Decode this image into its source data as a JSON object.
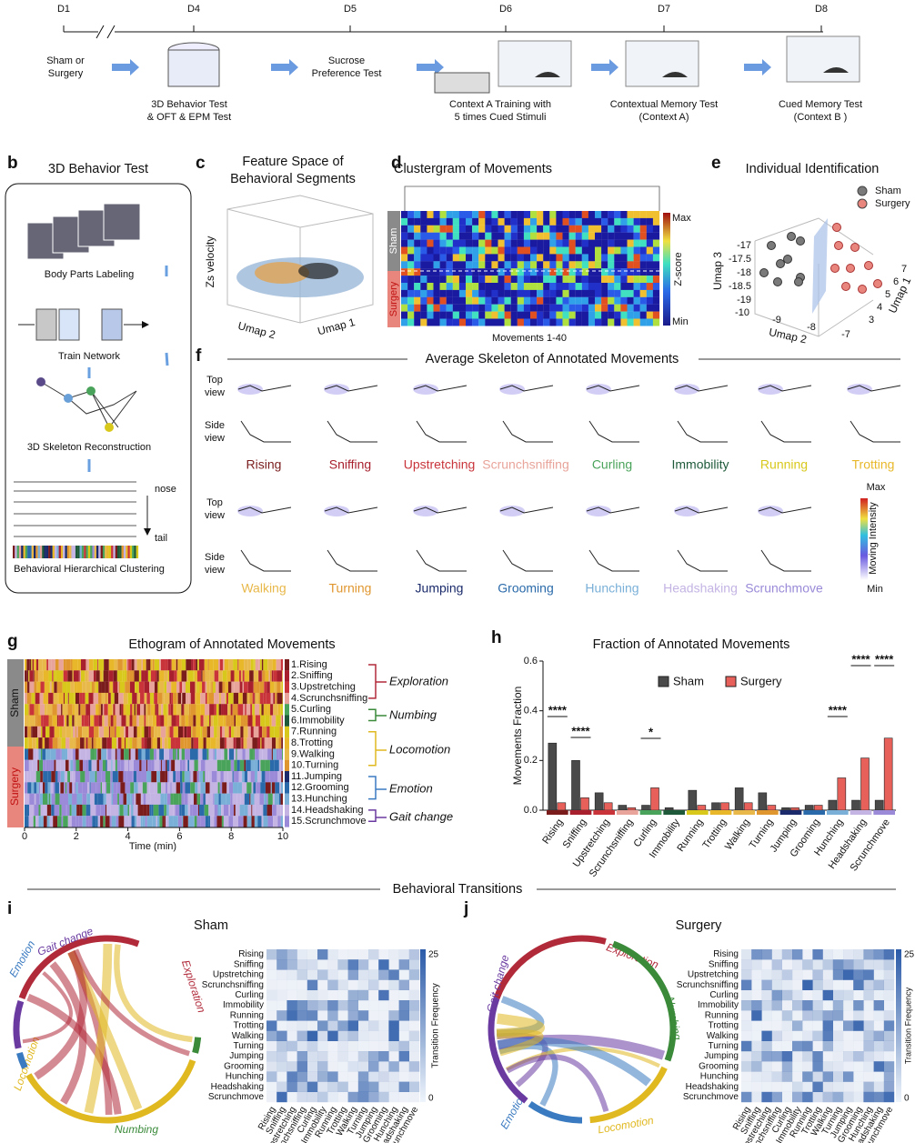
{
  "timeline": {
    "days": [
      "D1",
      "D4",
      "D5",
      "D6",
      "D7",
      "D8"
    ],
    "steps": [
      [
        "Sham or",
        "Surgery"
      ],
      [
        "3D Behavior Test",
        "& OFT & EPM Test"
      ],
      [
        "Sucrose",
        "Preference Test"
      ],
      [
        "Context A Training with",
        "5 times Cued Stimuli"
      ],
      [
        "Contextual Memory Test",
        "(Context A)"
      ],
      [
        "Cued Memory Test",
        "(Context B )"
      ]
    ]
  },
  "panel_b": {
    "letter": "b",
    "title": "3D Behavior Test",
    "steps": [
      "Body Parts Labeling",
      "Train Network",
      "3D Skeleton Reconstruction",
      "Behavioral Hierarchical Clustering"
    ],
    "nose": "nose",
    "tail": "tail"
  },
  "panel_c": {
    "letter": "c",
    "title": [
      "Feature Space of",
      "Behavioral Segments"
    ],
    "zlabel": "Zs velocity",
    "xlabel": "Umap 2",
    "ylabel": "Umap 1"
  },
  "panel_d": {
    "letter": "d",
    "title": "Clustergram of Movements",
    "groups": [
      "Sham",
      "Surgery"
    ],
    "colorbar": [
      "Max",
      "Z-score",
      "Min"
    ],
    "xlabel": "Movements 1-40"
  },
  "panel_e": {
    "letter": "e",
    "title": "Individual Identification",
    "legend": [
      "Sham",
      "Surgery"
    ],
    "legend_colors": [
      "#7a7a7a",
      "#e8867e"
    ],
    "umap3": "Umap 3",
    "umap2": "Umap 2",
    "umap1": "Umap 1",
    "umap3_ticks": [
      "-17",
      "-17.5",
      "-18",
      "-18.5",
      "-19"
    ],
    "umap2_ticks": [
      "-10",
      "-9",
      "-8",
      "-7"
    ],
    "umap1_ticks": [
      "3",
      "4",
      "5",
      "6",
      "7"
    ]
  },
  "panel_f": {
    "letter": "f",
    "title": "Average Skeleton of Annotated Movements",
    "top_view": [
      "Top",
      "view"
    ],
    "side_view": [
      "Side",
      "view"
    ],
    "colorbar": [
      "Max",
      "Moving Intensity",
      "Min"
    ]
  },
  "movements": [
    "Rising",
    "Sniffing",
    "Upstretching",
    "Scrunchsniffing",
    "Curling",
    "Immobility",
    "Running",
    "Trotting",
    "Walking",
    "Turning",
    "Jumping",
    "Grooming",
    "Hunching",
    "Headshaking",
    "Scrunchmove"
  ],
  "movement_colors": [
    "#7a1c1c",
    "#a8202e",
    "#c8343a",
    "#e8a49a",
    "#4aa35a",
    "#1e5a3a",
    "#d8c81c",
    "#e8b82a",
    "#e8b84a",
    "#e0962e",
    "#1a2a6a",
    "#2a6aaa",
    "#7ab0d8",
    "#c4b4e4",
    "#9a8ad8"
  ],
  "panel_g": {
    "letter": "g",
    "title": "Ethogram of Annotated Movements",
    "groups": [
      "Sham",
      "Surgery"
    ],
    "xlabel": "Time (min)",
    "xlim": [
      0,
      10
    ],
    "xticks": [
      0,
      2,
      4,
      6,
      8,
      10
    ],
    "legend": [
      "1.Rising",
      "2.Sniffing",
      "3.Upstretching",
      "4.Scrunchsniffing",
      "5.Curling",
      "6.Immobility",
      "7.Running",
      "8.Trotting",
      "9.Walking",
      "10.Turning",
      "11.Jumping",
      "12.Grooming",
      "13.Hunching",
      "14.Headshaking",
      "15.Scrunchmove"
    ],
    "categories": [
      "Exploration",
      "Numbing",
      "Locomotion",
      "Emotion",
      "Gait change"
    ]
  },
  "group_colors": [
    "#b02a3a",
    "#3a8a3a",
    "#e0b820",
    "#3a7ac0",
    "#6a3aa0"
  ],
  "panel_h": {
    "letter": "h"
  },
  "chart_data": {
    "type": "bar",
    "title": "Fraction of Annotated Movements",
    "ylabel": "Movements Fraction",
    "categories": [
      "Rising",
      "Sniffing",
      "Upstretching",
      "Scrunchsniffing",
      "Curling",
      "Immobility",
      "Running",
      "Trotting",
      "Walking",
      "Turning",
      "Jumping",
      "Grooming",
      "Hunching",
      "Headshaking",
      "Scrunchmove"
    ],
    "series": [
      {
        "name": "Sham",
        "color": "#4a4a4a",
        "values": [
          0.27,
          0.2,
          0.07,
          0.02,
          0.02,
          0.01,
          0.08,
          0.03,
          0.09,
          0.07,
          0.01,
          0.02,
          0.04,
          0.04,
          0.04
        ]
      },
      {
        "name": "Surgery",
        "color": "#e8605a",
        "values": [
          0.03,
          0.05,
          0.03,
          0.01,
          0.09,
          0,
          0.02,
          0.03,
          0.03,
          0.02,
          0.01,
          0.02,
          0.13,
          0.21,
          0.29
        ]
      }
    ],
    "ylim": [
      0,
      0.6
    ],
    "yticks": [
      {
        "value": 0,
        "label": "0.0"
      },
      0.2,
      0.4,
      0.6
    ],
    "annotations": [
      "****",
      "****",
      "*",
      "****",
      "****",
      "****"
    ]
  },
  "transitions": {
    "title": "Behavioral Transitions",
    "panels": [
      {
        "letter": "i",
        "title": "Sham"
      },
      {
        "letter": "j",
        "title": "Surgery"
      }
    ],
    "groups": [
      "Exploration",
      "Numbing",
      "Locomotion",
      "Emotion",
      "Gait change"
    ],
    "colorbar_ticks": [
      "25",
      "0"
    ],
    "colorbar_label": "Transition Frequency"
  }
}
